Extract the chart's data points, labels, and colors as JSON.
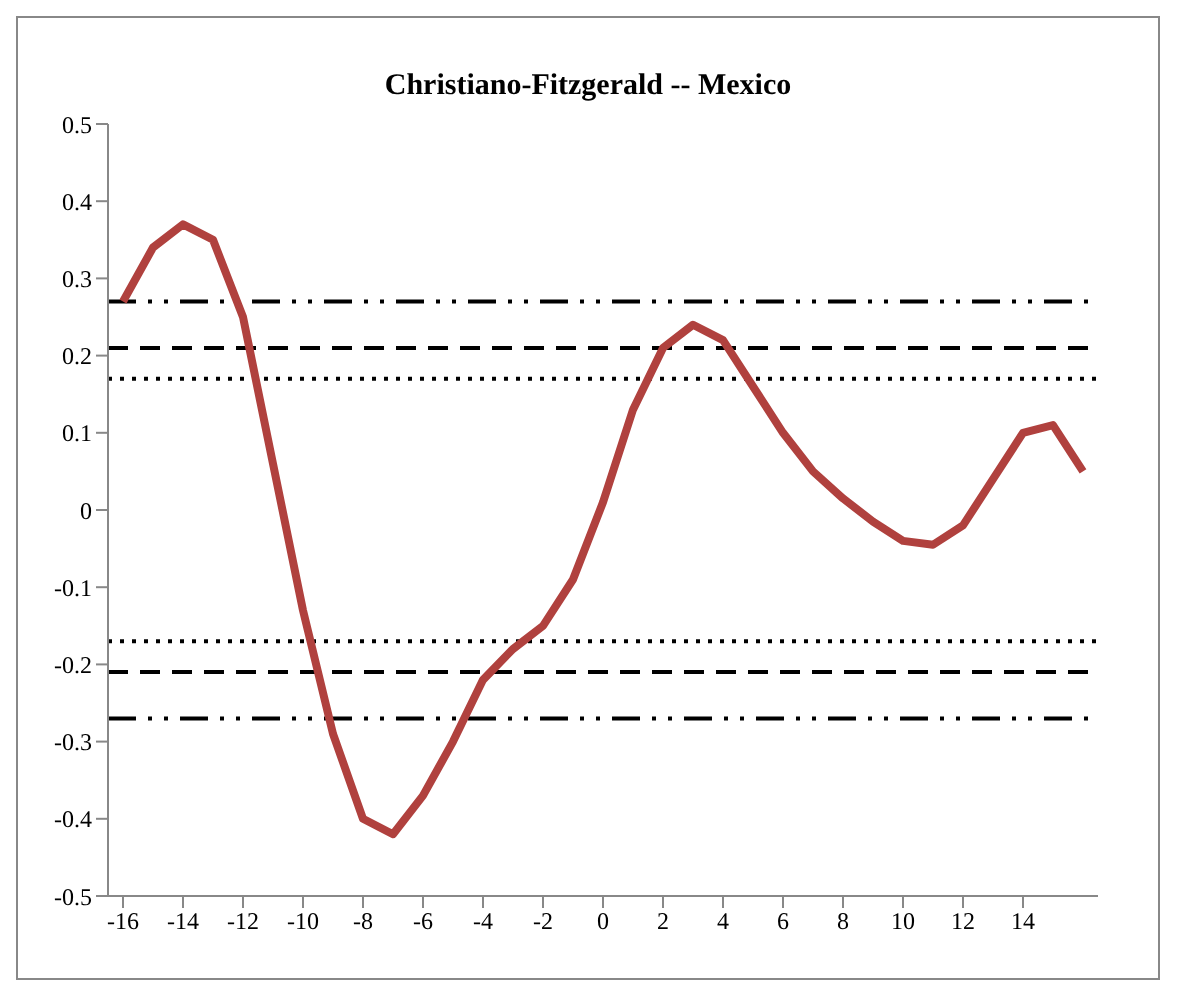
{
  "chart_data": {
    "type": "line",
    "title": "Christiano-Fitzgerald -- Mexico",
    "x": [
      -16,
      -15,
      -14,
      -13,
      -12,
      -11,
      -10,
      -9,
      -8,
      -7,
      -6,
      -5,
      -4,
      -3,
      -2,
      -1,
      0,
      1,
      2,
      3,
      4,
      5,
      6,
      7,
      8,
      9,
      10,
      11,
      12,
      13,
      14,
      15,
      16
    ],
    "series": [
      {
        "color": "#b0413e",
        "values": [
          0.27,
          0.34,
          0.37,
          0.35,
          0.25,
          0.06,
          -0.13,
          -0.29,
          -0.4,
          -0.42,
          -0.37,
          -0.3,
          -0.22,
          -0.18,
          -0.15,
          -0.09,
          0.01,
          0.13,
          0.21,
          0.24,
          0.22,
          0.16,
          0.1,
          0.05,
          0.015,
          -0.015,
          -0.04,
          -0.045,
          -0.02,
          0.04,
          0.1,
          0.11,
          0.05
        ]
      }
    ],
    "xlim": [
      -16.5,
      16.5
    ],
    "xticks": [
      -16,
      -14,
      -12,
      -10,
      -8,
      -6,
      -4,
      -2,
      0,
      2,
      4,
      6,
      8,
      10,
      12,
      14
    ],
    "ylim": [
      -0.5,
      0.5
    ],
    "yticks": [
      -0.5,
      -0.4,
      -0.3,
      -0.2,
      -0.1,
      0,
      0.1,
      0.2,
      0.3,
      0.4,
      0.5
    ],
    "ref_lines": [
      {
        "axis": "y",
        "value": 0.27,
        "color": "#000000",
        "line_style": "dashdot"
      },
      {
        "axis": "y",
        "value": 0.21,
        "color": "#000000",
        "line_style": "dashed"
      },
      {
        "axis": "y",
        "value": 0.17,
        "color": "#000000",
        "line_style": "dotted"
      },
      {
        "axis": "y",
        "value": -0.17,
        "color": "#000000",
        "line_style": "dotted"
      },
      {
        "axis": "y",
        "value": -0.21,
        "color": "#000000",
        "line_style": "dashed"
      },
      {
        "axis": "y",
        "value": -0.27,
        "color": "#000000",
        "line_style": "dashdot"
      }
    ],
    "grid": false,
    "legend": false,
    "marker": "none",
    "line_style": "solid"
  }
}
